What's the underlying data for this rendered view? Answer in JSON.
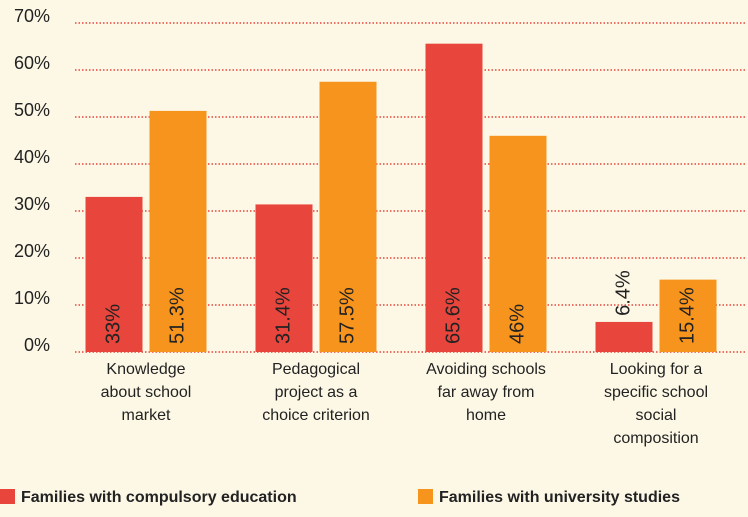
{
  "chart_data": {
    "type": "bar",
    "categories": [
      "Knowledge\nabout school\nmarket",
      "Pedagogical\nproject as a\nchoice criterion",
      "Avoiding schools\nfar away from\nhome",
      "Looking for a\nspecific school\nsocial\ncomposition"
    ],
    "series": [
      {
        "name": "Families with compulsory education",
        "color": "#e8453c",
        "values": [
          33,
          31.4,
          65.6,
          6.4
        ],
        "value_labels": [
          "33%",
          "31.4%",
          "65.6%",
          "6.4%"
        ]
      },
      {
        "name": "Families with university studies",
        "color": "#f7941d",
        "values": [
          51.3,
          57.5,
          46,
          15.4
        ],
        "value_labels": [
          "51.3%",
          "57.5%",
          "46%",
          "15.4%"
        ]
      }
    ],
    "ylim": [
      0,
      70
    ],
    "yticks": [
      {
        "value": 0,
        "label": "0%"
      },
      {
        "value": 10,
        "label": "10%"
      },
      {
        "value": 20,
        "label": "20%"
      },
      {
        "value": 30,
        "label": "30%"
      },
      {
        "value": 40,
        "label": "40%"
      },
      {
        "value": 50,
        "label": "50%"
      },
      {
        "value": 60,
        "label": "60%"
      },
      {
        "value": 70,
        "label": "70%"
      }
    ],
    "grid": true
  }
}
